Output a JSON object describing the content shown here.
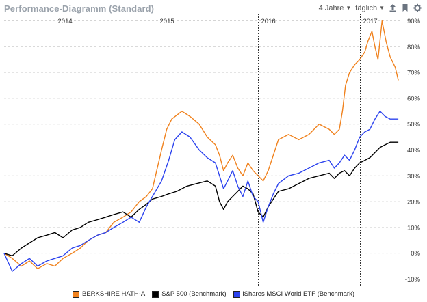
{
  "header": {
    "title": "Performance-Diagramm (Standard)",
    "range_label": "4 Jahre",
    "interval_label": "täglich"
  },
  "icons": {
    "export": "upload-icon",
    "bookmark": "bookmark-icon",
    "settings": "gear-icon"
  },
  "legend": {
    "items": [
      {
        "name": "BERKSHIRE HATH-A",
        "color": "#f0821e"
      },
      {
        "name": "S&P 500  (Benchmark)",
        "color": "#000000"
      },
      {
        "name": "iShares MSCI World ETF (Benchmark)",
        "color": "#2c43ee"
      }
    ]
  },
  "chart_data": {
    "type": "line",
    "title": "Performance-Diagramm (Standard)",
    "xlabel": "",
    "ylabel": "",
    "x_range": [
      2013.5,
      2017.42
    ],
    "ylim": [
      -12,
      92
    ],
    "y_ticks": [
      -10,
      0,
      10,
      20,
      30,
      40,
      50,
      60,
      70,
      80,
      90
    ],
    "y_tick_labels": [
      "-10%",
      "0%",
      "10%",
      "20%",
      "30%",
      "40%",
      "50%",
      "60%",
      "70%",
      "80%",
      "90%"
    ],
    "x_ticks": [
      2014,
      2015,
      2016,
      2017
    ],
    "x_tick_labels": [
      "2014",
      "2015",
      "2016",
      "2017"
    ],
    "grid": true,
    "y_axis_position": "right",
    "series": [
      {
        "name": "BERKSHIRE HATH-A",
        "color": "#f0821e",
        "x": [
          2013.5,
          2013.58,
          2013.67,
          2013.75,
          2013.83,
          2013.92,
          2014.0,
          2014.08,
          2014.17,
          2014.25,
          2014.33,
          2014.42,
          2014.5,
          2014.58,
          2014.67,
          2014.75,
          2014.83,
          2014.9,
          2014.96,
          2015.05,
          2015.1,
          2015.15,
          2015.25,
          2015.33,
          2015.42,
          2015.5,
          2015.58,
          2015.62,
          2015.66,
          2015.7,
          2015.75,
          2015.8,
          2015.85,
          2015.9,
          2015.95,
          2016.0,
          2016.05,
          2016.1,
          2016.15,
          2016.2,
          2016.3,
          2016.4,
          2016.5,
          2016.6,
          2016.7,
          2016.75,
          2016.8,
          2016.83,
          2016.86,
          2016.9,
          2016.95,
          2017.0,
          2017.05,
          2017.08,
          2017.12,
          2017.15,
          2017.18,
          2017.22,
          2017.26,
          2017.3,
          2017.35,
          2017.38
        ],
        "values": [
          0,
          -2,
          -5,
          -3,
          -6,
          -4,
          -5,
          -2,
          0,
          2,
          5,
          7,
          8,
          12,
          14,
          16,
          20,
          22,
          25,
          40,
          48,
          52,
          55,
          53,
          50,
          45,
          42,
          38,
          32,
          35,
          38,
          33,
          30,
          35,
          32,
          30,
          28,
          32,
          38,
          44,
          46,
          44,
          46,
          50,
          48,
          46,
          48,
          55,
          65,
          70,
          73,
          75,
          78,
          82,
          86,
          80,
          75,
          90,
          82,
          76,
          72,
          67
        ]
      },
      {
        "name": "S&P 500  (Benchmark)",
        "color": "#000000",
        "x": [
          2013.5,
          2013.58,
          2013.67,
          2013.75,
          2013.83,
          2013.92,
          2014.0,
          2014.08,
          2014.17,
          2014.25,
          2014.33,
          2014.42,
          2014.5,
          2014.58,
          2014.67,
          2014.75,
          2014.83,
          2014.9,
          2014.96,
          2015.05,
          2015.12,
          2015.2,
          2015.3,
          2015.4,
          2015.5,
          2015.58,
          2015.62,
          2015.66,
          2015.7,
          2015.75,
          2015.8,
          2015.85,
          2015.9,
          2015.95,
          2016.0,
          2016.05,
          2016.1,
          2016.15,
          2016.2,
          2016.3,
          2016.4,
          2016.5,
          2016.6,
          2016.7,
          2016.75,
          2016.8,
          2016.85,
          2016.9,
          2016.95,
          2017.0,
          2017.05,
          2017.1,
          2017.15,
          2017.2,
          2017.25,
          2017.3,
          2017.38
        ],
        "values": [
          0,
          -1,
          2,
          4,
          6,
          7,
          8,
          6,
          9,
          10,
          12,
          13,
          14,
          15,
          16,
          14,
          17,
          19,
          21,
          22,
          23,
          24,
          26,
          27,
          28,
          26,
          20,
          17,
          20,
          22,
          24,
          26,
          25,
          23,
          16,
          14,
          18,
          21,
          24,
          25,
          27,
          29,
          30,
          31,
          29,
          31,
          32,
          30,
          33,
          35,
          36,
          37,
          39,
          41,
          42,
          43,
          43
        ]
      },
      {
        "name": "iShares MSCI World ETF (Benchmark)",
        "color": "#2c43ee",
        "x": [
          2013.5,
          2013.58,
          2013.67,
          2013.75,
          2013.83,
          2013.92,
          2014.0,
          2014.08,
          2014.17,
          2014.25,
          2014.33,
          2014.42,
          2014.5,
          2014.58,
          2014.67,
          2014.75,
          2014.83,
          2014.9,
          2014.96,
          2015.05,
          2015.12,
          2015.18,
          2015.25,
          2015.33,
          2015.42,
          2015.5,
          2015.58,
          2015.62,
          2015.66,
          2015.7,
          2015.75,
          2015.8,
          2015.85,
          2015.9,
          2015.95,
          2016.0,
          2016.05,
          2016.1,
          2016.15,
          2016.2,
          2016.3,
          2016.4,
          2016.5,
          2016.6,
          2016.7,
          2016.75,
          2016.8,
          2016.85,
          2016.9,
          2016.95,
          2017.0,
          2017.05,
          2017.1,
          2017.15,
          2017.2,
          2017.25,
          2017.3,
          2017.38
        ],
        "values": [
          0,
          -7,
          -4,
          -2,
          -5,
          -3,
          -2,
          -1,
          2,
          3,
          5,
          7,
          8,
          10,
          12,
          14,
          12,
          18,
          22,
          28,
          36,
          44,
          47,
          45,
          40,
          37,
          35,
          30,
          25,
          28,
          32,
          26,
          22,
          28,
          22,
          20,
          12,
          18,
          23,
          27,
          30,
          31,
          33,
          35,
          36,
          33,
          35,
          38,
          36,
          40,
          45,
          47,
          48,
          52,
          55,
          53,
          52,
          52
        ]
      }
    ]
  }
}
